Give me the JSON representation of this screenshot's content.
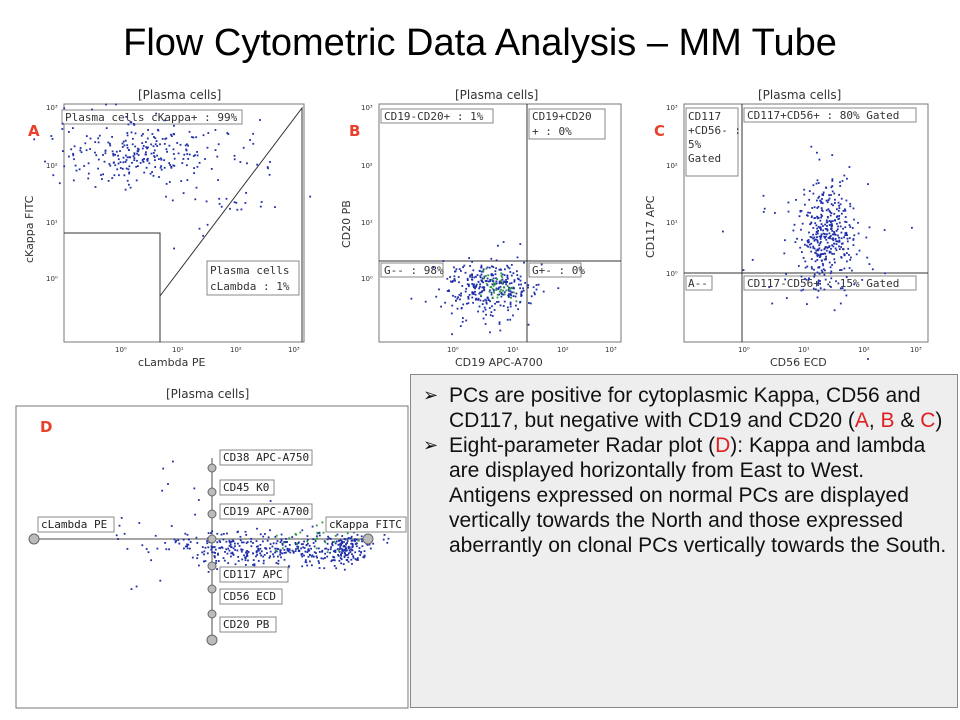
{
  "title": "Flow Cytometric Data Analysis – MM Tube",
  "panels": {
    "A": {
      "letter": "A",
      "header": "[Plasma cells]",
      "xlabel": "cLambda PE",
      "ylabel": "cKappa FITC",
      "gate_top": "Plasma cells cKappa+ : 99%",
      "gate_bottom_line1": "Plasma cells",
      "gate_bottom_line2": "cLambda : 1%"
    },
    "B": {
      "letter": "B",
      "header": "[Plasma cells]",
      "xlabel": "CD19 APC-A700",
      "ylabel": "CD20 PB",
      "q_tl": "CD19-CD20+ : 1%",
      "q_tr_line1": "CD19+CD20",
      "q_tr_line2": "+ : 0%",
      "q_bl": "G-- : 98%",
      "q_br": "G+- : 0%"
    },
    "C": {
      "letter": "C",
      "header": "[Plasma cells]",
      "xlabel": "CD56 ECD",
      "ylabel": "CD117 APC",
      "q_tl_lines": [
        "CD117",
        "+CD56- :",
        "5%",
        "Gated"
      ],
      "q_tr": "CD117+CD56+ : 80% Gated",
      "q_bl": "A--",
      "q_br": "CD117-CD56+ : 15% Gated"
    },
    "D": {
      "letter": "D",
      "header": "[Plasma cells]",
      "left_label": "cLambda PE",
      "right_label": "cKappa FITC",
      "north_labels": [
        "CD38 APC-A750",
        "CD45 K0",
        "CD19 APC-A700"
      ],
      "south_labels": [
        "CD117 APC",
        "CD56 ECD",
        "CD20 PB"
      ]
    }
  },
  "ticks": {
    "log": [
      "10⁰",
      "10¹",
      "10²",
      "10³"
    ]
  },
  "bullets": [
    {
      "parts": [
        "PCs are positive for cytoplasmic Kappa, CD56 and CD117, but negative with CD19 and CD20 (",
        "A",
        ", ",
        "B",
        " & ",
        "C",
        ")"
      ]
    },
    {
      "parts": [
        "Eight-parameter Radar plot (",
        "D",
        "): Kappa and lambda are displayed horizontally from East to West. Antigens expressed on normal PCs are displayed vertically towards the North and those expressed aberrantly on clonal PCs vertically towards the South."
      ]
    }
  ],
  "colors": {
    "dots": "#1f2fa8",
    "green": "#2a9a3a",
    "red_letter": "#e8402a",
    "accent_red": "#e02020"
  }
}
